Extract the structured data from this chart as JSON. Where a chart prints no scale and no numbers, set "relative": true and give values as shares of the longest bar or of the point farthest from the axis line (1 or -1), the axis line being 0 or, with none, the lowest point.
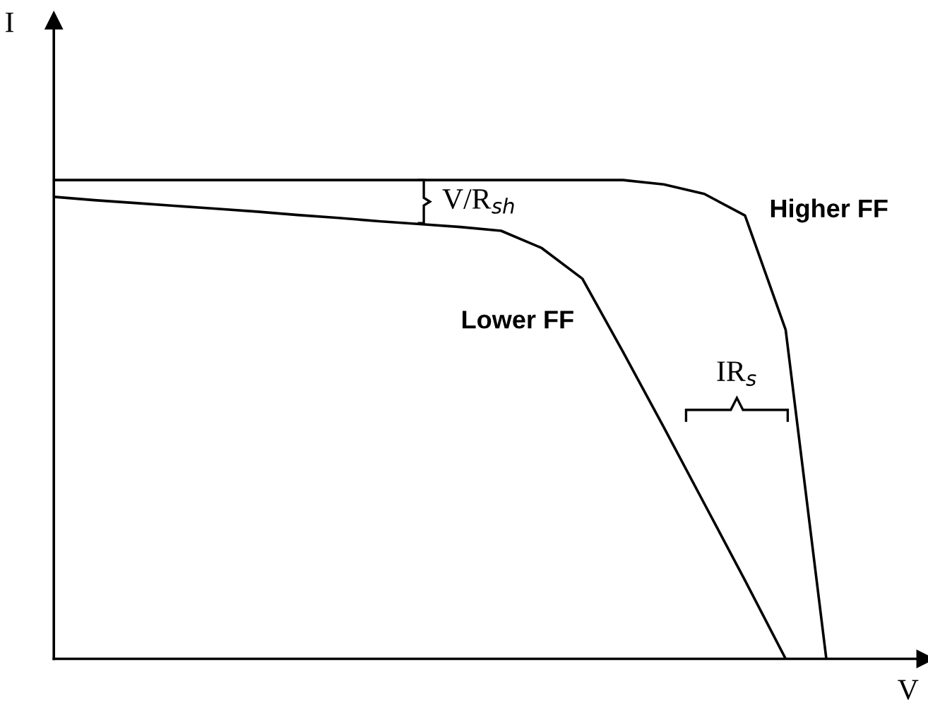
{
  "chart_data": {
    "type": "line",
    "relative": true,
    "xlabel": "V",
    "categories": [
      null,
      null,
      null,
      null,
      null,
      null,
      null,
      null,
      null,
      null,
      null,
      null,
      null,
      null,
      null,
      null,
      null,
      null,
      null,
      null
    ],
    "series": [
      {
        "name": "Higher FF",
        "color": "#000000",
        "values": [
          1.0,
          1.0,
          1.0,
          1.0,
          1.0,
          1.0,
          1.0,
          1.0,
          1.0,
          1.0,
          1.0,
          1.0,
          1.0,
          1.0,
          1.0,
          0.991,
          0.971,
          0.926,
          0.687,
          0
        ]
      },
      {
        "name": "Lower FF",
        "color": "#000000",
        "values": [
          0.965,
          0.958,
          0.952,
          0.946,
          0.94,
          0.934,
          0.927,
          0.921,
          0.914,
          0.908,
          0.902,
          0.894,
          0.858,
          0.794,
          0.641,
          0.484,
          0.324,
          0.164,
          0,
          null
        ]
      }
    ],
    "annotations": [
      "V/R$_{sh}$",
      "IR$_{s}$",
      "I"
    ],
    "marker": "none",
    "line_style": "solid",
    "legend": false
  }
}
